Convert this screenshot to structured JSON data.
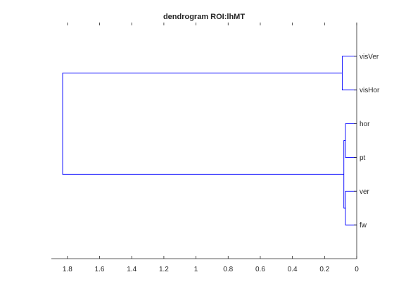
{
  "chart_data": {
    "type": "dendrogram",
    "title": "dendrogram ROI:lhMT",
    "xlabel": "",
    "ylabel": "",
    "orientation": "left",
    "x_axis_reversed": true,
    "xlim": [
      1.9,
      0
    ],
    "x_ticks": [
      1.8,
      1.6,
      1.4,
      1.2,
      1,
      0.8,
      0.6,
      0.4,
      0.2,
      0
    ],
    "leaves": [
      "visVer",
      "visHor",
      "hor",
      "pt",
      "ver",
      "fw"
    ],
    "merges": [
      {
        "id": "c1",
        "children": [
          "hor",
          "pt"
        ],
        "height": 0.07
      },
      {
        "id": "c2",
        "children": [
          "ver",
          "fw"
        ],
        "height": 0.07
      },
      {
        "id": "c3",
        "children": [
          "visVer",
          "visHor"
        ],
        "height": 0.09
      },
      {
        "id": "c4",
        "children": [
          "c1",
          "c2"
        ],
        "height": 0.08
      },
      {
        "id": "c5",
        "children": [
          "c3",
          "c4"
        ],
        "height": 1.83
      }
    ],
    "grid": false,
    "line_color": "#0000ff"
  }
}
